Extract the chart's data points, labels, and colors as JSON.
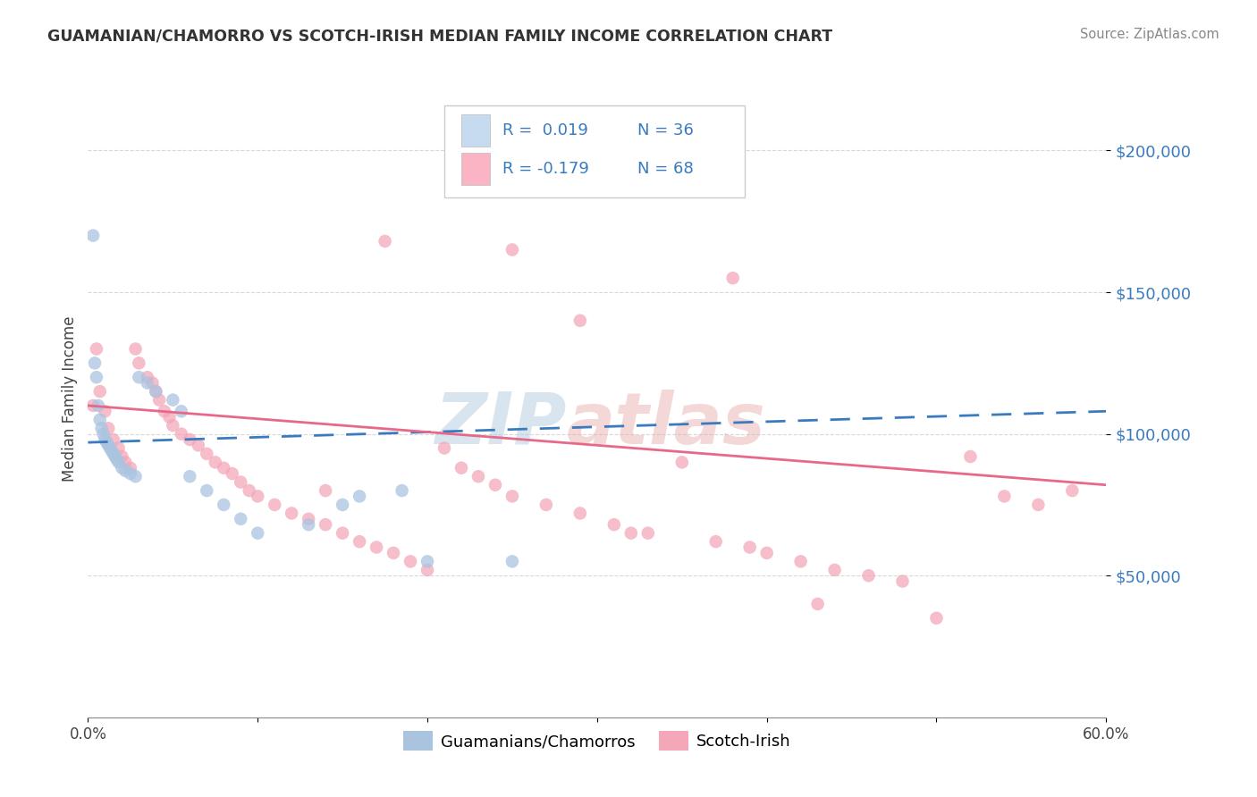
{
  "title": "GUAMANIAN/CHAMORRO VS SCOTCH-IRISH MEDIAN FAMILY INCOME CORRELATION CHART",
  "source": "Source: ZipAtlas.com",
  "ylabel": "Median Family Income",
  "legend_label1": "Guamanians/Chamorros",
  "legend_label2": "Scotch-Irish",
  "color1": "#aac4e0",
  "color2": "#f4a7b9",
  "color1_fill": "#c6dbef",
  "color2_fill": "#fbb4c3",
  "trendline1_color": "#3a7bbf",
  "trendline2_color": "#e8688a",
  "ytick_color": "#3a7bbf",
  "xlim": [
    0.0,
    0.6
  ],
  "ylim": [
    0,
    225000
  ],
  "yticks": [
    50000,
    100000,
    150000,
    200000
  ],
  "ytick_labels": [
    "$50,000",
    "$100,000",
    "$150,000",
    "$200,000"
  ],
  "grid_color": "#d8d8d8",
  "blue_x": [
    0.003,
    0.004,
    0.005,
    0.006,
    0.007,
    0.008,
    0.009,
    0.01,
    0.011,
    0.012,
    0.013,
    0.014,
    0.015,
    0.016,
    0.017,
    0.018,
    0.02,
    0.022,
    0.025,
    0.028,
    0.03,
    0.035,
    0.04,
    0.05,
    0.055,
    0.06,
    0.07,
    0.08,
    0.09,
    0.1,
    0.13,
    0.15,
    0.16,
    0.185,
    0.2,
    0.25
  ],
  "blue_y": [
    170000,
    125000,
    120000,
    110000,
    105000,
    102000,
    100000,
    98000,
    97000,
    96000,
    95000,
    94000,
    93000,
    92000,
    91000,
    90000,
    88000,
    87000,
    86000,
    85000,
    120000,
    118000,
    115000,
    112000,
    108000,
    85000,
    80000,
    75000,
    70000,
    65000,
    68000,
    75000,
    78000,
    80000,
    55000,
    55000
  ],
  "pink_x": [
    0.003,
    0.005,
    0.007,
    0.01,
    0.012,
    0.015,
    0.018,
    0.02,
    0.022,
    0.025,
    0.028,
    0.03,
    0.035,
    0.038,
    0.04,
    0.042,
    0.045,
    0.048,
    0.05,
    0.055,
    0.06,
    0.065,
    0.07,
    0.075,
    0.08,
    0.085,
    0.09,
    0.095,
    0.1,
    0.11,
    0.12,
    0.13,
    0.14,
    0.15,
    0.16,
    0.17,
    0.18,
    0.19,
    0.2,
    0.21,
    0.22,
    0.23,
    0.24,
    0.25,
    0.27,
    0.29,
    0.31,
    0.33,
    0.35,
    0.37,
    0.39,
    0.4,
    0.42,
    0.44,
    0.46,
    0.48,
    0.5,
    0.52,
    0.54,
    0.56,
    0.58,
    0.25,
    0.38,
    0.175,
    0.29,
    0.43,
    0.14,
    0.32
  ],
  "pink_y": [
    110000,
    130000,
    115000,
    108000,
    102000,
    98000,
    95000,
    92000,
    90000,
    88000,
    130000,
    125000,
    120000,
    118000,
    115000,
    112000,
    108000,
    106000,
    103000,
    100000,
    98000,
    96000,
    93000,
    90000,
    88000,
    86000,
    83000,
    80000,
    78000,
    75000,
    72000,
    70000,
    68000,
    65000,
    62000,
    60000,
    58000,
    55000,
    52000,
    95000,
    88000,
    85000,
    82000,
    78000,
    75000,
    72000,
    68000,
    65000,
    90000,
    62000,
    60000,
    58000,
    55000,
    52000,
    50000,
    48000,
    35000,
    92000,
    78000,
    75000,
    80000,
    165000,
    155000,
    168000,
    140000,
    40000,
    80000,
    65000
  ],
  "trend1_x": [
    0.0,
    0.6
  ],
  "trend1_y": [
    97000,
    108000
  ],
  "trend2_x": [
    0.0,
    0.6
  ],
  "trend2_y": [
    110000,
    82000
  ]
}
